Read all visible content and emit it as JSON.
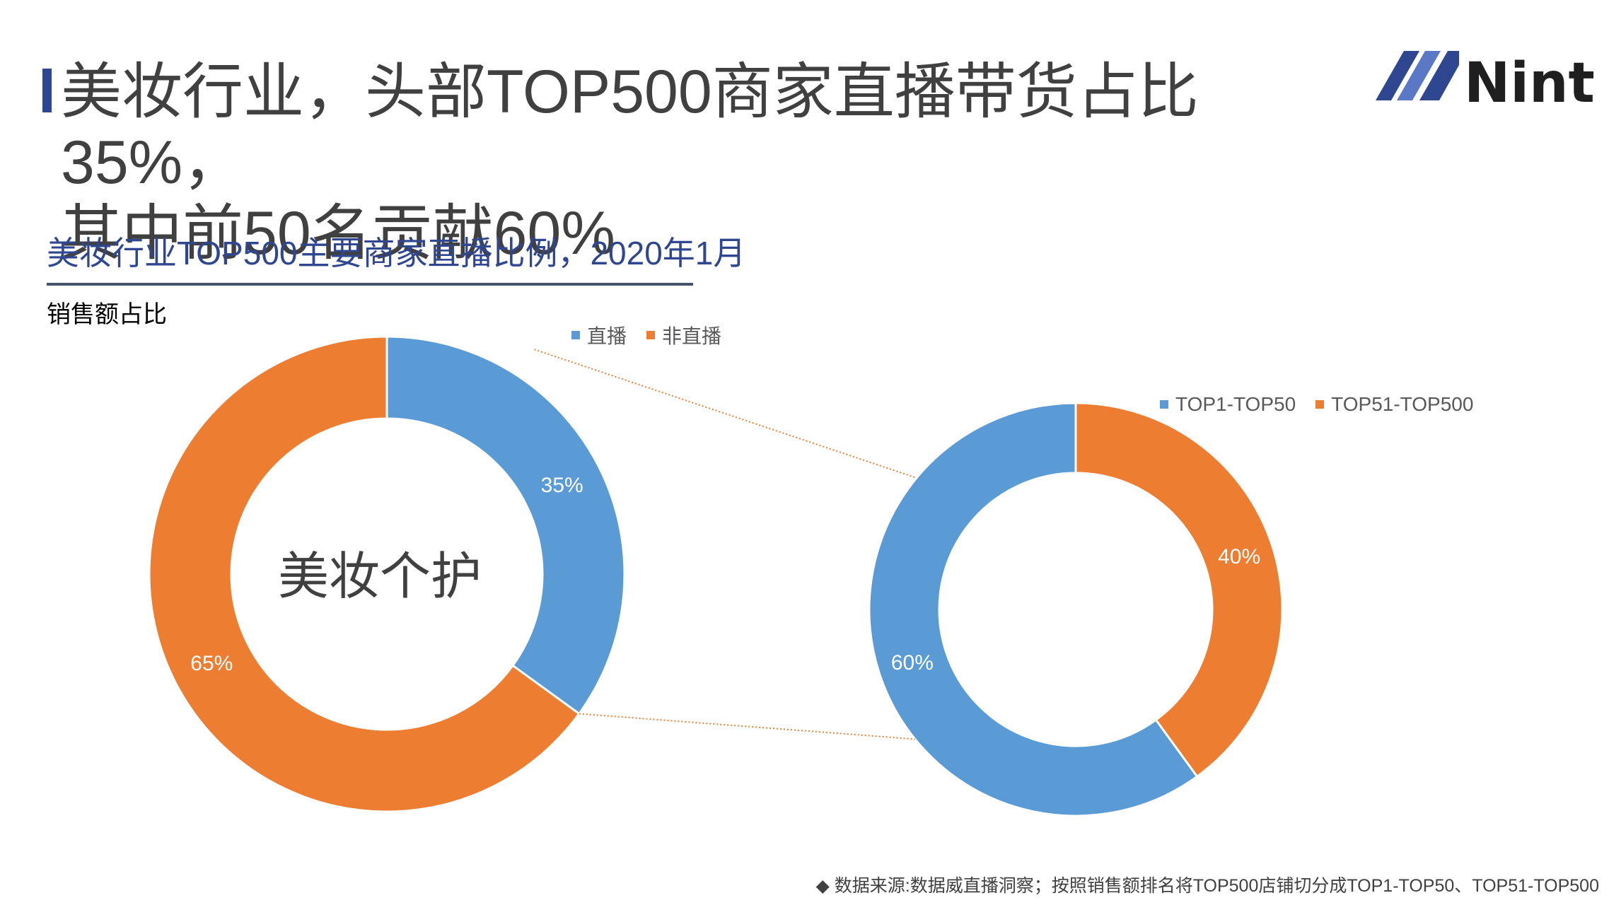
{
  "title": {
    "line1": "美妆行业，头部TOP500商家直播带货占比35%，",
    "line2": "其中前50名贡献60%"
  },
  "logo": {
    "text": "Nint"
  },
  "chart_subtitle": "美妆行业TOP500主要商家直播比例，2020年1月",
  "ylabel": "销售额占比",
  "footnote": {
    "bullet": "◆",
    "text": "数据来源:数据威直播洞察；按照销售额排名将TOP500店铺切分成TOP1-TOP50、TOP51-TOP500"
  },
  "colors": {
    "blue": "#5b9bd5",
    "orange": "#ed7d31",
    "title_accent": "#2f4690",
    "connector": "#ed7d31"
  },
  "chart_data": [
    {
      "type": "pie",
      "donut": true,
      "center_label": "美妆个护",
      "categories": [
        "直播",
        "非直播"
      ],
      "values": [
        35,
        65
      ],
      "labels": [
        "35%",
        "65%"
      ],
      "colors": [
        "#5b9bd5",
        "#ed7d31"
      ],
      "legend": "top"
    },
    {
      "type": "pie",
      "donut": true,
      "categories": [
        "TOP1-TOP50",
        "TOP51-TOP500"
      ],
      "values": [
        60,
        40
      ],
      "labels": [
        "60%",
        "40%"
      ],
      "colors": [
        "#5b9bd5",
        "#ed7d31"
      ],
      "legend": "top"
    }
  ]
}
